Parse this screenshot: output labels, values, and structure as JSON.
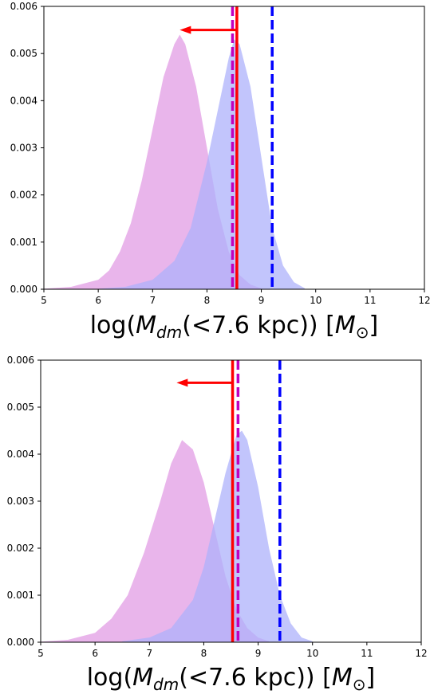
{
  "chart_data": [
    {
      "type": "area",
      "xlim": [
        5,
        12
      ],
      "ylim": [
        0,
        0.006
      ],
      "x_ticks": [
        "5",
        "6",
        "7",
        "8",
        "9",
        "10",
        "11",
        "12"
      ],
      "y_ticks": [
        "0.000",
        "0.001",
        "0.002",
        "0.003",
        "0.004",
        "0.005",
        "0.006"
      ],
      "xlabel": {
        "main": "log(",
        "M": "M",
        "sub": "dm",
        "mid": "(<7.6 kpc)) [",
        "M2": "M",
        "sub2": "⊙",
        "end": "]"
      },
      "series": [
        {
          "color": "#e5a8e8",
          "x": [
            5.0,
            5.5,
            6.0,
            6.2,
            6.4,
            6.6,
            6.8,
            7.0,
            7.2,
            7.4,
            7.5,
            7.6,
            7.8,
            8.0,
            8.2,
            8.4,
            8.6,
            8.8,
            9.0
          ],
          "y": [
            1e-05,
            5e-05,
            0.0002,
            0.0004,
            0.0008,
            0.0014,
            0.0023,
            0.0034,
            0.0045,
            0.0052,
            0.0054,
            0.0052,
            0.0043,
            0.003,
            0.0017,
            0.0008,
            0.0003,
            0.0001,
            2e-05
          ]
        },
        {
          "color": "#aeb2fb",
          "x": [
            6.0,
            6.5,
            7.0,
            7.4,
            7.7,
            8.0,
            8.2,
            8.4,
            8.5,
            8.6,
            8.8,
            9.0,
            9.2,
            9.4,
            9.6,
            9.8
          ],
          "y": [
            1e-05,
            5e-05,
            0.0002,
            0.0006,
            0.0013,
            0.0027,
            0.0038,
            0.0049,
            0.0053,
            0.0052,
            0.0043,
            0.0028,
            0.0013,
            0.0005,
            0.00015,
            2e-05
          ]
        }
      ],
      "vlines": [
        {
          "x": 8.47,
          "color": "#bf00bf",
          "style": "dashed"
        },
        {
          "x": 8.55,
          "color": "#ff0000",
          "style": "solid"
        },
        {
          "x": 9.2,
          "color": "#0000ff",
          "style": "dashed"
        }
      ],
      "arrow": {
        "from_x": 8.55,
        "to_x": 7.5,
        "y": 0.0055,
        "color": "#ff0000"
      }
    },
    {
      "type": "area",
      "xlim": [
        5,
        12
      ],
      "ylim": [
        0,
        0.006
      ],
      "x_ticks": [
        "5",
        "6",
        "7",
        "8",
        "9",
        "10",
        "11",
        "12"
      ],
      "y_ticks": [
        "0.000",
        "0.001",
        "0.002",
        "0.003",
        "0.004",
        "0.005",
        "0.006"
      ],
      "xlabel": {
        "main": "log(",
        "M": "M",
        "sub": "dm",
        "mid": "(<7.6 kpc)) [",
        "M2": "M",
        "sub2": "⊙",
        "end": "]"
      },
      "series": [
        {
          "color": "#e5a8e8",
          "x": [
            5.0,
            5.5,
            6.0,
            6.3,
            6.6,
            6.9,
            7.2,
            7.4,
            7.6,
            7.8,
            8.0,
            8.2,
            8.4,
            8.6,
            8.8,
            9.0,
            9.2
          ],
          "y": [
            1e-05,
            5e-05,
            0.0002,
            0.0005,
            0.001,
            0.0019,
            0.003,
            0.0038,
            0.0043,
            0.0041,
            0.0034,
            0.0024,
            0.0014,
            0.0007,
            0.0003,
            0.0001,
            2e-05
          ]
        },
        {
          "color": "#aeb2fb",
          "x": [
            6.5,
            7.0,
            7.4,
            7.8,
            8.0,
            8.2,
            8.4,
            8.6,
            8.7,
            8.8,
            9.0,
            9.2,
            9.4,
            9.6,
            9.8,
            10.0
          ],
          "y": [
            2e-05,
            0.0001,
            0.0003,
            0.0009,
            0.0016,
            0.0026,
            0.0036,
            0.0044,
            0.0045,
            0.0043,
            0.0033,
            0.002,
            0.001,
            0.0004,
            0.0001,
            2e-05
          ]
        }
      ],
      "vlines": [
        {
          "x": 8.63,
          "color": "#bf00bf",
          "style": "dashed"
        },
        {
          "x": 8.53,
          "color": "#ff0000",
          "style": "solid"
        },
        {
          "x": 9.4,
          "color": "#0000ff",
          "style": "dashed"
        }
      ],
      "arrow": {
        "from_x": 8.53,
        "to_x": 7.5,
        "y": 0.00552,
        "color": "#ff0000"
      }
    }
  ]
}
